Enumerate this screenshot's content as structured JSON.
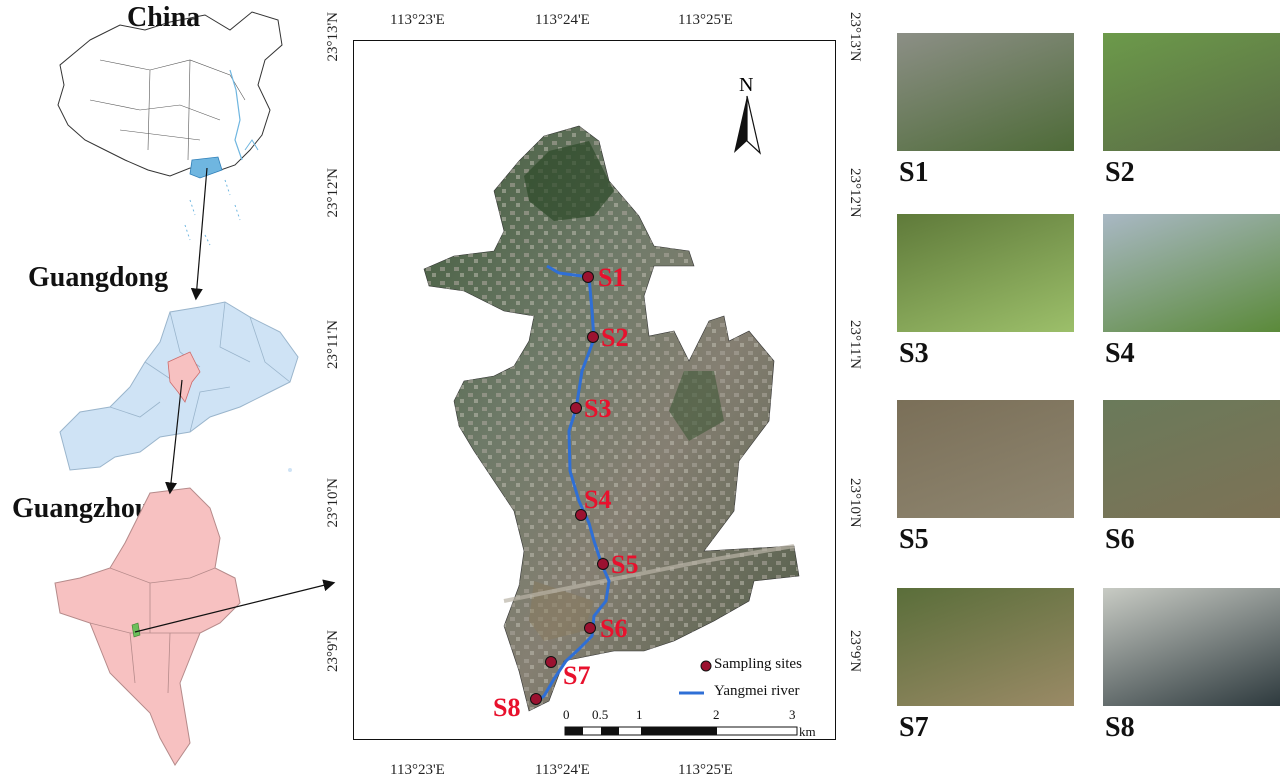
{
  "regions": {
    "china": "China",
    "guangdong": "Guangdong",
    "guangzhou": "Guangzhou"
  },
  "coords": {
    "top": [
      "113°23'E",
      "113°24'E",
      "113°25'E"
    ],
    "bottom": [
      "113°23'E",
      "113°24'E",
      "113°25'E"
    ],
    "left": [
      "23°13'N",
      "23°12'N",
      "23°11'N",
      "23°10'N",
      "23°9'N"
    ],
    "right": [
      "23°13'N",
      "23°12'N",
      "23°11'N",
      "23°10'N",
      "23°9'N"
    ]
  },
  "north_label": "N",
  "sites": [
    "S1",
    "S2",
    "S3",
    "S4",
    "S5",
    "S6",
    "S7",
    "S8"
  ],
  "legend": {
    "sampling_sites": "Sampling sites",
    "river": "Yangmei river"
  },
  "scale": {
    "ticks": [
      "0",
      "0.5",
      "1",
      "2",
      "3"
    ],
    "unit": "km"
  },
  "photos": [
    "S1",
    "S2",
    "S3",
    "S4",
    "S5",
    "S6",
    "S7",
    "S8"
  ],
  "colors": {
    "china_fill": "#ffffff",
    "guangdong_fill": "#cfe3f5",
    "guangzhou_fill": "#f7c1c1",
    "highlight_blue": "#6fb6e0",
    "highlight_green": "#6cbf5a",
    "river": "#2f6fd6",
    "site_marker": "#9b1230",
    "site_label": "#e8112d"
  }
}
